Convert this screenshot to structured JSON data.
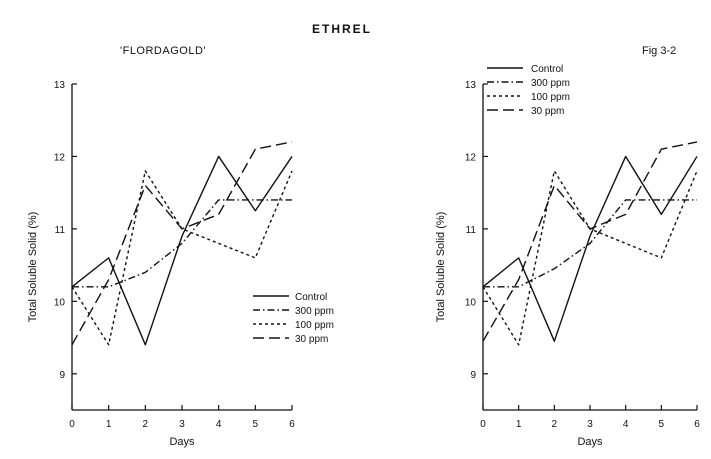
{
  "header": {
    "title": "ETHREL",
    "subtitle": "'FLORDAGOLD'",
    "figure_label": "Fig 3-2"
  },
  "chart_data": [
    {
      "type": "line",
      "xlabel": "Days",
      "ylabel": "Total Soluble Solid (%)",
      "x": [
        0,
        1,
        2,
        3,
        4,
        5,
        6
      ],
      "xlim": [
        0,
        6
      ],
      "ylim": [
        8.5,
        13
      ],
      "yticks": [
        9,
        10,
        11,
        12,
        13
      ],
      "legend_position": "lower-right",
      "series": [
        {
          "name": "Control",
          "style": "solid",
          "values": [
            10.2,
            10.6,
            9.4,
            10.9,
            12.0,
            11.25,
            12.0
          ]
        },
        {
          "name": "300 ppm",
          "style": "dashdot",
          "values": [
            10.2,
            10.2,
            10.4,
            10.8,
            11.4,
            11.4,
            11.4
          ]
        },
        {
          "name": "100 ppm",
          "style": "dotted",
          "values": [
            10.2,
            9.4,
            11.8,
            11.0,
            10.8,
            10.6,
            11.8
          ]
        },
        {
          "name": "30 ppm",
          "style": "longdash",
          "values": [
            9.4,
            10.3,
            11.6,
            11.0,
            11.2,
            12.1,
            12.2
          ]
        }
      ]
    },
    {
      "type": "line",
      "xlabel": "Days",
      "ylabel": "Total Soluble Solid (%)",
      "x": [
        0,
        1,
        2,
        3,
        4,
        5,
        6
      ],
      "xlim": [
        0,
        6
      ],
      "ylim": [
        8.5,
        13
      ],
      "yticks": [
        9,
        10,
        11,
        12,
        13
      ],
      "legend_position": "top-left",
      "series": [
        {
          "name": "Control",
          "style": "solid",
          "values": [
            10.2,
            10.6,
            9.45,
            10.9,
            12.0,
            11.2,
            12.0
          ]
        },
        {
          "name": "300 ppm",
          "style": "dashdot",
          "values": [
            10.2,
            10.2,
            10.45,
            10.8,
            11.4,
            11.4,
            11.4
          ]
        },
        {
          "name": "100 ppm",
          "style": "dotted",
          "values": [
            10.2,
            9.4,
            11.8,
            11.0,
            10.8,
            10.6,
            11.8
          ]
        },
        {
          "name": "30 ppm",
          "style": "longdash",
          "values": [
            9.45,
            10.3,
            11.6,
            11.0,
            11.2,
            12.1,
            12.2
          ]
        }
      ]
    }
  ],
  "colors": {
    "ink": "#111111",
    "background": "#ffffff"
  }
}
